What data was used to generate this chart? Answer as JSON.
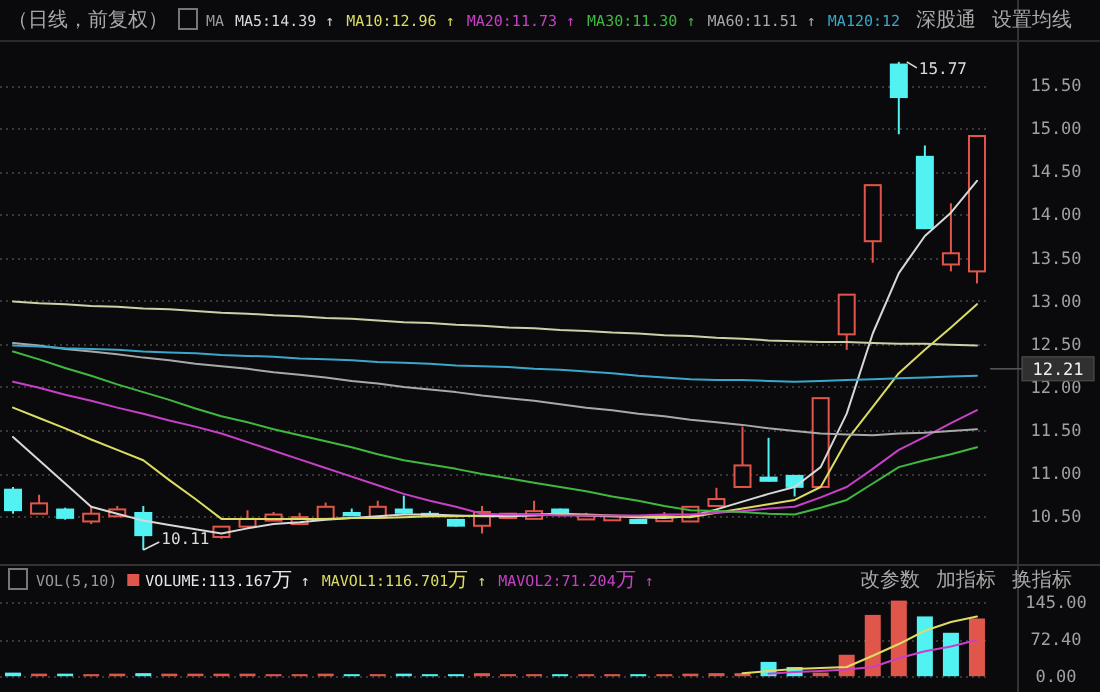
{
  "chart_data": [
    {
      "type": "candlestick",
      "subtitle": "（日线，前复权）",
      "legend_title": "MA",
      "legend": "top",
      "grid": "y",
      "categories": [
        null,
        null,
        null,
        null,
        null,
        null,
        null,
        null,
        null,
        null,
        null,
        null,
        null,
        null,
        null,
        null,
        null,
        null,
        null,
        null,
        null,
        null,
        null,
        null,
        null,
        null,
        null,
        null,
        null,
        null,
        null,
        null,
        null,
        null,
        null,
        null,
        null,
        null
      ],
      "ohlc": [
        [
          10.82,
          10.84,
          10.53,
          10.56
        ],
        [
          10.53,
          10.75,
          10.53,
          10.65
        ],
        [
          10.59,
          10.6,
          10.46,
          10.47
        ],
        [
          10.44,
          10.61,
          10.41,
          10.53
        ],
        [
          10.5,
          10.62,
          10.5,
          10.58
        ],
        [
          10.55,
          10.62,
          10.11,
          10.27
        ],
        null,
        null,
        [
          10.26,
          10.38,
          10.24,
          10.38
        ],
        [
          10.38,
          10.57,
          10.38,
          10.47
        ],
        [
          10.45,
          10.55,
          10.45,
          10.52
        ],
        [
          10.41,
          10.54,
          10.41,
          10.49
        ],
        [
          10.47,
          10.66,
          10.47,
          10.61
        ],
        [
          10.55,
          10.59,
          10.5,
          10.5
        ],
        [
          10.49,
          10.68,
          10.49,
          10.61
        ],
        [
          10.59,
          10.74,
          10.53,
          10.53
        ],
        [
          10.54,
          10.56,
          10.49,
          10.49
        ],
        [
          10.47,
          10.47,
          10.38,
          10.38
        ],
        [
          10.39,
          10.62,
          10.3,
          10.55
        ],
        [
          10.48,
          10.53,
          10.48,
          10.53
        ],
        [
          10.47,
          10.68,
          10.47,
          10.56
        ],
        [
          10.59,
          10.59,
          10.53,
          10.53
        ],
        [
          10.5,
          10.54,
          10.47,
          10.51
        ],
        [
          10.47,
          10.5,
          10.47,
          10.5
        ],
        [
          10.47,
          10.47,
          10.41,
          10.41
        ],
        [
          10.46,
          10.55,
          10.46,
          10.49
        ],
        [
          10.44,
          10.61,
          10.44,
          10.61
        ],
        [
          10.62,
          10.83,
          10.62,
          10.7
        ],
        [
          10.84,
          11.54,
          10.84,
          11.09
        ],
        [
          10.96,
          11.41,
          10.9,
          10.9
        ],
        [
          10.98,
          10.98,
          10.73,
          10.83
        ],
        [
          10.84,
          11.87,
          10.84,
          11.87
        ],
        [
          12.61,
          13.07,
          12.43,
          13.07
        ],
        [
          13.69,
          14.34,
          13.44,
          14.34
        ],
        [
          15.75,
          15.77,
          14.93,
          15.35
        ],
        [
          14.68,
          14.8,
          13.83,
          13.83
        ],
        [
          13.42,
          14.13,
          13.34,
          13.55
        ],
        [
          13.34,
          14.91,
          13.2,
          14.91
        ]
      ],
      "colors": [
        "#52f2f2",
        "#e0564a",
        "#52f2f2",
        "#e0564a",
        "#e0564a",
        "#52f2f2",
        null,
        null,
        "#e0564a",
        "#e0564a",
        "#e0564a",
        "#e0564a",
        "#e0564a",
        "#52f2f2",
        "#e0564a",
        "#52f2f2",
        "#52f2f2",
        "#52f2f2",
        "#e0564a",
        "#e0564a",
        "#e0564a",
        "#52f2f2",
        "#e0564a",
        "#e0564a",
        "#52f2f2",
        "#e0564a",
        "#e0564a",
        "#e0564a",
        "#e0564a",
        "#52f2f2",
        "#52f2f2",
        "#e0564a",
        "#e0564a",
        "#e0564a",
        "#52f2f2",
        "#52f2f2",
        "#e0564a",
        "#e0564a"
      ],
      "series": [
        {
          "type": "line",
          "name": "MA5:14.39 ↑",
          "color": "#d8d8d8",
          "values": [
            11.42,
            11.15,
            10.88,
            10.61,
            10.53,
            10.45,
            10.4,
            10.35,
            10.3,
            10.36,
            10.41,
            10.43,
            10.46,
            10.48,
            10.5,
            10.52,
            10.52,
            10.51,
            10.5,
            10.5,
            10.51,
            10.52,
            10.51,
            10.5,
            10.49,
            10.48,
            10.5,
            10.58,
            10.67,
            10.76,
            10.84,
            11.07,
            11.69,
            12.62,
            13.32,
            13.75,
            14.02,
            14.39
          ]
        },
        {
          "type": "line",
          "name": "MA10:12.96 ↑",
          "color": "#dcdc64",
          "values": [
            11.76,
            11.64,
            11.52,
            11.39,
            11.27,
            11.15,
            10.92,
            10.7,
            10.47,
            10.47,
            10.47,
            10.47,
            10.47,
            10.48,
            10.48,
            10.49,
            10.5,
            10.5,
            10.51,
            10.52,
            10.52,
            10.53,
            10.52,
            10.51,
            10.5,
            10.5,
            10.49,
            10.54,
            10.59,
            10.64,
            10.69,
            10.84,
            11.38,
            11.77,
            12.16,
            12.43,
            12.69,
            12.96
          ]
        },
        {
          "type": "line",
          "name": "MA20:11.73 ↑",
          "color": "#c840c8",
          "values": [
            12.06,
            11.99,
            11.91,
            11.84,
            11.76,
            11.69,
            11.61,
            11.54,
            11.46,
            11.36,
            11.26,
            11.16,
            11.06,
            10.96,
            10.86,
            10.76,
            10.68,
            10.61,
            10.53,
            10.52,
            10.52,
            10.51,
            10.51,
            10.51,
            10.51,
            10.52,
            10.52,
            10.54,
            10.56,
            10.59,
            10.61,
            10.72,
            10.84,
            11.05,
            11.27,
            11.42,
            11.58,
            11.73
          ]
        },
        {
          "type": "line",
          "name": "MA30:11.30 ↑",
          "color": "#40b840",
          "values": [
            12.41,
            12.32,
            12.22,
            12.13,
            12.03,
            11.94,
            11.85,
            11.75,
            11.66,
            11.59,
            11.51,
            11.44,
            11.37,
            11.3,
            11.22,
            11.15,
            11.1,
            11.05,
            10.99,
            10.94,
            10.89,
            10.84,
            10.79,
            10.73,
            10.68,
            10.62,
            10.57,
            10.56,
            10.55,
            10.53,
            10.52,
            10.6,
            10.69,
            10.88,
            11.07,
            11.15,
            11.22,
            11.3
          ]
        },
        {
          "type": "line",
          "name": "MA60:11.51 ↑",
          "color": "#a8a8a8",
          "values": [
            12.51,
            12.48,
            12.44,
            12.41,
            12.38,
            12.34,
            12.31,
            12.27,
            12.24,
            12.21,
            12.17,
            12.14,
            12.11,
            12.07,
            12.04,
            12.0,
            11.97,
            11.94,
            11.9,
            11.87,
            11.84,
            11.8,
            11.76,
            11.73,
            11.69,
            11.66,
            11.62,
            11.59,
            11.56,
            11.52,
            11.49,
            11.46,
            11.45,
            11.44,
            11.46,
            11.47,
            11.49,
            11.51
          ]
        },
        {
          "type": "line",
          "name": "MA120:12",
          "color": "#3aa8c8",
          "values": [
            12.48,
            12.47,
            12.45,
            12.44,
            12.43,
            12.41,
            12.4,
            12.39,
            12.37,
            12.36,
            12.35,
            12.33,
            12.32,
            12.31,
            12.29,
            12.28,
            12.27,
            12.25,
            12.24,
            12.23,
            12.21,
            12.2,
            12.18,
            12.16,
            12.13,
            12.11,
            12.09,
            12.08,
            12.08,
            12.07,
            12.06,
            12.07,
            12.08,
            12.09,
            12.1,
            12.11,
            12.12,
            12.13
          ]
        },
        {
          "type": "line",
          "color": "#cfcfa8",
          "values": [
            12.99,
            12.97,
            12.96,
            12.94,
            12.93,
            12.91,
            12.9,
            12.88,
            12.86,
            12.85,
            12.83,
            12.82,
            12.8,
            12.79,
            12.77,
            12.75,
            12.74,
            12.72,
            12.71,
            12.69,
            12.68,
            12.66,
            12.65,
            12.63,
            12.62,
            12.6,
            12.59,
            12.57,
            12.56,
            12.54,
            12.53,
            12.52,
            12.52,
            12.51,
            12.5,
            12.5,
            12.49,
            12.48
          ]
        }
      ],
      "ylim": [
        9.97,
        16.0
      ],
      "yticks": [
        {
          "value": 10.5,
          "label": "10.50"
        },
        {
          "value": 11,
          "label": "11.00"
        },
        {
          "value": 11.5,
          "label": "11.50"
        },
        {
          "value": 12,
          "label": "12.00"
        },
        {
          "value": 12.5,
          "label": "12.50"
        },
        {
          "value": 13,
          "label": "13.00"
        },
        {
          "value": 13.5,
          "label": "13.50"
        },
        {
          "value": 14,
          "label": "14.00"
        },
        {
          "value": 14.5,
          "label": "14.50"
        },
        {
          "value": 15,
          "label": "15.00"
        },
        {
          "value": 15.5,
          "label": "15.50"
        }
      ],
      "ref_lines": [
        {
          "axis": "y",
          "value": 12.21,
          "label": "12.21"
        }
      ],
      "annotations": [
        "15.77",
        "10.11",
        "深股通",
        "设置均线"
      ]
    },
    {
      "type": "bar",
      "legend_title": "VOL(5,10)",
      "legend": "top",
      "grid": "y",
      "categories": [
        null,
        null,
        null,
        null,
        null,
        null,
        null,
        null,
        null,
        null,
        null,
        null,
        null,
        null,
        null,
        null,
        null,
        null,
        null,
        null,
        null,
        null,
        null,
        null,
        null,
        null,
        null,
        null,
        null,
        null,
        null,
        null,
        null,
        null,
        null,
        null,
        null,
        null
      ],
      "series": [
        {
          "type": "bar",
          "name": "VOLUME:113.167万 ↑",
          "color": "#e8e8e8",
          "values": [
            7,
            5,
            5,
            4,
            5,
            6,
            5,
            5,
            5,
            5,
            4,
            4,
            5,
            4,
            4,
            5,
            4,
            4,
            6,
            4,
            4,
            4,
            4,
            4,
            4,
            4,
            5,
            6,
            6,
            28,
            18,
            7,
            42,
            120,
            148,
            117,
            85,
            113
          ],
          "colors": [
            "#52f2f2",
            "#e0564a",
            "#52f2f2",
            "#e0564a",
            "#e0564a",
            "#52f2f2",
            "#e0564a",
            "#e0564a",
            "#e0564a",
            "#e0564a",
            "#e0564a",
            "#e0564a",
            "#e0564a",
            "#52f2f2",
            "#e0564a",
            "#52f2f2",
            "#52f2f2",
            "#52f2f2",
            "#e0564a",
            "#e0564a",
            "#e0564a",
            "#52f2f2",
            "#e0564a",
            "#e0564a",
            "#52f2f2",
            "#e0564a",
            "#e0564a",
            "#e0564a",
            "#e0564a",
            "#52f2f2",
            "#52f2f2",
            "#e0564a",
            "#e0564a",
            "#e0564a",
            "#e0564a",
            "#52f2f2",
            "#52f2f2",
            "#e0564a"
          ]
        },
        {
          "type": "line",
          "name": "MAVOL1:116.701万 ↑",
          "color": "#dcdc64",
          "values": [
            null,
            null,
            null,
            null,
            null,
            null,
            null,
            null,
            null,
            null,
            null,
            null,
            null,
            null,
            null,
            null,
            null,
            null,
            null,
            null,
            null,
            null,
            null,
            null,
            null,
            null,
            null,
            null,
            6,
            10,
            14,
            16,
            18,
            40,
            63,
            89,
            106,
            117
          ]
        },
        {
          "type": "line",
          "name": "MAVOL2:71.204万 ↑",
          "color": "#c840c8",
          "values": [
            null,
            null,
            null,
            null,
            null,
            null,
            null,
            null,
            null,
            null,
            null,
            null,
            null,
            null,
            null,
            null,
            null,
            null,
            null,
            null,
            null,
            null,
            null,
            null,
            null,
            null,
            null,
            null,
            null,
            5,
            8,
            10,
            13,
            18,
            35,
            49,
            58,
            71
          ]
        }
      ],
      "ylim": [
        -27,
        157
      ],
      "yticks": [
        {
          "value": 0,
          "label": "0.00"
        },
        {
          "value": 72.4,
          "label": "72.40"
        },
        {
          "value": 145,
          "label": "145.00"
        }
      ],
      "annotations": [
        "改参数",
        "加指标",
        "换指标"
      ]
    }
  ]
}
